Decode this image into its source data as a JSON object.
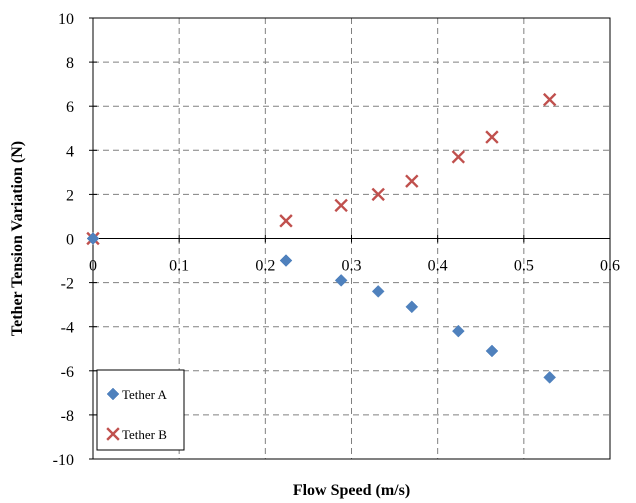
{
  "chart_data": {
    "type": "scatter",
    "title": "",
    "xlabel": "Flow Speed (m/s)",
    "ylabel": "Tether Tension Variation (N)",
    "xlim": [
      0,
      0.6
    ],
    "ylim": [
      -10,
      10
    ],
    "xticks": [
      0,
      0.1,
      0.2,
      0.3,
      0.4,
      0.5,
      0.6
    ],
    "xtick_labels": [
      "0",
      "0.1",
      "0.2",
      "0.3",
      "0.4",
      "0.5",
      "0.6"
    ],
    "yticks": [
      10,
      8,
      6,
      4,
      2,
      0,
      -2,
      -4,
      -6,
      -8,
      -10
    ],
    "ytick_labels": [
      "10",
      "8",
      "6",
      "4",
      "2",
      "0",
      "-2",
      "-4",
      "-6",
      "-8",
      "-10"
    ],
    "grid": true,
    "grid_style": "dashed",
    "legend_position": "bottom-left",
    "series": [
      {
        "name": "Tether A",
        "marker": "diamond",
        "color": "#4F81BD",
        "x": [
          0,
          0.224,
          0.288,
          0.331,
          0.37,
          0.424,
          0.463,
          0.53
        ],
        "y": [
          0,
          -1.0,
          -1.9,
          -2.4,
          -3.1,
          -4.2,
          -5.1,
          -6.3
        ]
      },
      {
        "name": "Tether B",
        "marker": "x",
        "color": "#C0504D",
        "x": [
          0,
          0.224,
          0.288,
          0.331,
          0.37,
          0.424,
          0.463,
          0.53
        ],
        "y": [
          0,
          0.8,
          1.5,
          2.0,
          2.6,
          3.7,
          4.6,
          6.3
        ]
      }
    ]
  }
}
